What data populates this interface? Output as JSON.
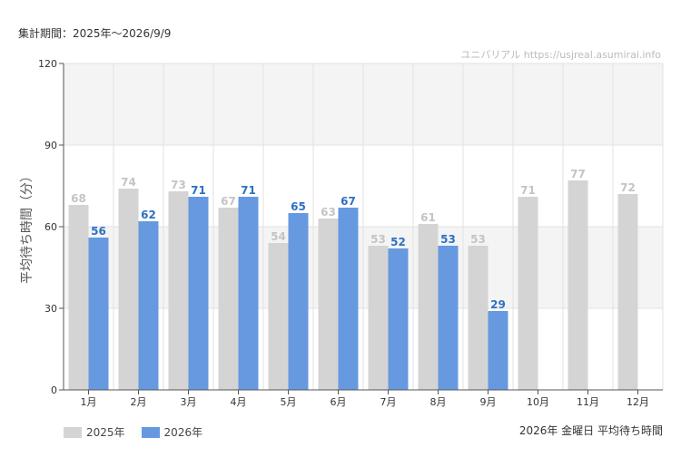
{
  "header": {
    "period_label": "集計期間：2025年〜2026/9/9",
    "watermark": "ユニバリアル  https://usjreal.asumirai.info"
  },
  "footer": {
    "caption": "2026年 金曜日 平均待ち時間"
  },
  "colors": {
    "series_2025": "#d4d4d4",
    "series_2025_label": "#c4c4c4",
    "series_2026": "#6699e0",
    "series_2026_label": "#2f6fc4",
    "band": "#f4f4f4",
    "grid": "#e2e2e2"
  },
  "chart_data": {
    "type": "bar",
    "ylabel": "平均待ち時間（分）",
    "xlabel": "",
    "ylim": [
      0,
      120
    ],
    "yticks": [
      0,
      30,
      60,
      90,
      120
    ],
    "grid": true,
    "legend_placement": "bottom-left",
    "categories": [
      "1月",
      "2月",
      "3月",
      "4月",
      "5月",
      "6月",
      "7月",
      "8月",
      "9月",
      "10月",
      "11月",
      "12月"
    ],
    "series": [
      {
        "name": "2025年",
        "values": [
          68,
          74,
          73,
          67,
          54,
          63,
          53,
          61,
          53,
          71,
          77,
          72
        ]
      },
      {
        "name": "2026年",
        "values": [
          56,
          62,
          71,
          71,
          65,
          67,
          52,
          53,
          29,
          null,
          null,
          null
        ]
      }
    ]
  }
}
